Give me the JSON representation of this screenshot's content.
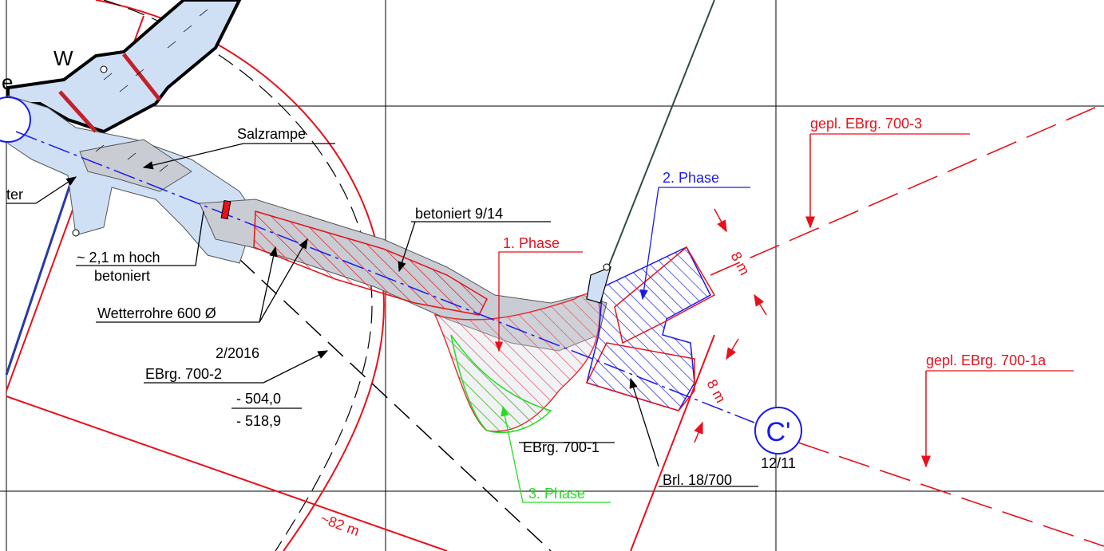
{
  "labels": {
    "w": "W",
    "e": "e",
    "ter": "ter",
    "salzrampe": "Salzrampe",
    "betoniert_9_14": "betoniert 9/14",
    "hoch": "~ 2,1 m hoch",
    "betoniert": "betoniert",
    "wetterrohre": "Wetterrohre 600 Ø",
    "date": "2/2016",
    "ebrg_700_2": "EBrg. 700-2",
    "depth_1": "- 504,0",
    "depth_2": "- 518,9",
    "phase_1": "1. Phase",
    "phase_2": "2. Phase",
    "phase_3": "3. Phase",
    "ebrg_700_1": "EBrg. 700-1",
    "brl": "Brl. 18/700",
    "gepl_700_3": "gepl. EBrg. 700-3",
    "gepl_700_1a": "gepl. EBrg. 700-1a",
    "dim_8m_upper": "8 m",
    "dim_8m_lower": "8 m",
    "dim_82m": "~82 m",
    "section_marker": "C'",
    "section_ref": "12/11"
  },
  "colors": {
    "red": "#e8101a",
    "blue": "#1a1aee",
    "green": "#22dd22",
    "light_blue_fill": "#cfe0f5",
    "grey_fill": "#c9ccd3",
    "grid": "#000000",
    "dark_teal": "#2e4d44"
  }
}
